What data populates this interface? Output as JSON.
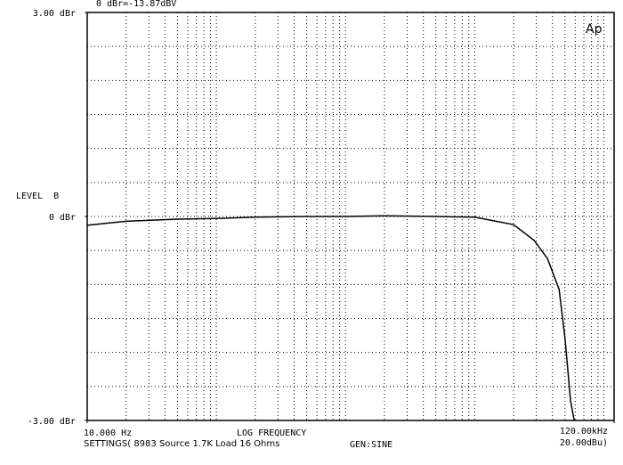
{
  "chart_data": {
    "type": "line",
    "reference": "0 dBr=-13.87dBV",
    "logo": "Ap",
    "ylabel": "LEVEL  B",
    "xlabel": "LOG FREQUENCY",
    "settings": "SETTINGS( 8983 Source 1.7K Load 16 Ohms",
    "generator": "GEN:SINE",
    "level": "20.00dBu)",
    "xscale": "log",
    "color": "#000000",
    "grid": true,
    "xlim": [
      10,
      120000
    ],
    "ylim": [
      -3,
      3
    ],
    "xticks": [
      {
        "value": 10,
        "label": "10.000 Hz"
      },
      {
        "value": 120000,
        "label": "120.00kHz"
      }
    ],
    "yticks": [
      {
        "value": 3,
        "label": "3.00 dBr"
      },
      {
        "value": 0,
        "label": "0 dBr"
      },
      {
        "value": -3,
        "label": "-3.00 dBr"
      }
    ],
    "xgrid": [
      20,
      30,
      40,
      50,
      60,
      70,
      80,
      90,
      100,
      200,
      300,
      400,
      500,
      600,
      700,
      800,
      900,
      1000,
      2000,
      3000,
      4000,
      5000,
      6000,
      7000,
      8000,
      9000,
      10000,
      20000,
      30000,
      40000,
      50000,
      60000,
      70000,
      80000,
      90000,
      100000
    ],
    "ygrid": [
      -2.5,
      -2,
      -1.5,
      -1,
      -0.5,
      0,
      0.5,
      1,
      1.5,
      2,
      2.5
    ],
    "x": [
      10,
      20,
      50,
      100,
      200,
      500,
      1000,
      2000,
      5000,
      10000,
      20000,
      28800,
      36600,
      45000,
      50000,
      55200,
      58900
    ],
    "values": [
      -0.13,
      -0.07,
      -0.04,
      -0.03,
      -0.01,
      0,
      0,
      0.01,
      0,
      -0.01,
      -0.12,
      -0.35,
      -0.62,
      -1.07,
      -1.79,
      -2.71,
      -3.0
    ]
  }
}
